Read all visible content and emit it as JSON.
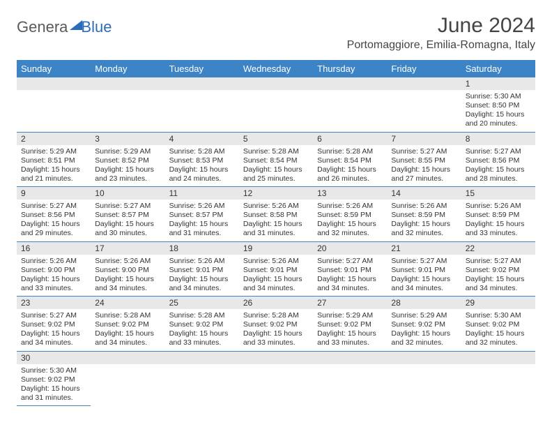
{
  "logo": {
    "part1": "Genera",
    "part2": "Blue"
  },
  "title": "June 2024",
  "location": "Portomaggiore, Emilia-Romagna, Italy",
  "dayHeaders": [
    "Sunday",
    "Monday",
    "Tuesday",
    "Wednesday",
    "Thursday",
    "Friday",
    "Saturday"
  ],
  "colors": {
    "headerBg": "#3d84c6",
    "headerText": "#ffffff",
    "dayNumBg": "#e8e8e8",
    "bodyText": "#333333",
    "accentBlue": "#2a6db8"
  },
  "layout": {
    "startWeekday": 6,
    "daysInMonth": 30
  },
  "days": [
    {
      "n": 1,
      "sr": "5:30 AM",
      "ss": "8:50 PM",
      "dl": "15 hours and 20 minutes."
    },
    {
      "n": 2,
      "sr": "5:29 AM",
      "ss": "8:51 PM",
      "dl": "15 hours and 21 minutes."
    },
    {
      "n": 3,
      "sr": "5:29 AM",
      "ss": "8:52 PM",
      "dl": "15 hours and 23 minutes."
    },
    {
      "n": 4,
      "sr": "5:28 AM",
      "ss": "8:53 PM",
      "dl": "15 hours and 24 minutes."
    },
    {
      "n": 5,
      "sr": "5:28 AM",
      "ss": "8:54 PM",
      "dl": "15 hours and 25 minutes."
    },
    {
      "n": 6,
      "sr": "5:28 AM",
      "ss": "8:54 PM",
      "dl": "15 hours and 26 minutes."
    },
    {
      "n": 7,
      "sr": "5:27 AM",
      "ss": "8:55 PM",
      "dl": "15 hours and 27 minutes."
    },
    {
      "n": 8,
      "sr": "5:27 AM",
      "ss": "8:56 PM",
      "dl": "15 hours and 28 minutes."
    },
    {
      "n": 9,
      "sr": "5:27 AM",
      "ss": "8:56 PM",
      "dl": "15 hours and 29 minutes."
    },
    {
      "n": 10,
      "sr": "5:27 AM",
      "ss": "8:57 PM",
      "dl": "15 hours and 30 minutes."
    },
    {
      "n": 11,
      "sr": "5:26 AM",
      "ss": "8:57 PM",
      "dl": "15 hours and 31 minutes."
    },
    {
      "n": 12,
      "sr": "5:26 AM",
      "ss": "8:58 PM",
      "dl": "15 hours and 31 minutes."
    },
    {
      "n": 13,
      "sr": "5:26 AM",
      "ss": "8:59 PM",
      "dl": "15 hours and 32 minutes."
    },
    {
      "n": 14,
      "sr": "5:26 AM",
      "ss": "8:59 PM",
      "dl": "15 hours and 32 minutes."
    },
    {
      "n": 15,
      "sr": "5:26 AM",
      "ss": "8:59 PM",
      "dl": "15 hours and 33 minutes."
    },
    {
      "n": 16,
      "sr": "5:26 AM",
      "ss": "9:00 PM",
      "dl": "15 hours and 33 minutes."
    },
    {
      "n": 17,
      "sr": "5:26 AM",
      "ss": "9:00 PM",
      "dl": "15 hours and 34 minutes."
    },
    {
      "n": 18,
      "sr": "5:26 AM",
      "ss": "9:01 PM",
      "dl": "15 hours and 34 minutes."
    },
    {
      "n": 19,
      "sr": "5:26 AM",
      "ss": "9:01 PM",
      "dl": "15 hours and 34 minutes."
    },
    {
      "n": 20,
      "sr": "5:27 AM",
      "ss": "9:01 PM",
      "dl": "15 hours and 34 minutes."
    },
    {
      "n": 21,
      "sr": "5:27 AM",
      "ss": "9:01 PM",
      "dl": "15 hours and 34 minutes."
    },
    {
      "n": 22,
      "sr": "5:27 AM",
      "ss": "9:02 PM",
      "dl": "15 hours and 34 minutes."
    },
    {
      "n": 23,
      "sr": "5:27 AM",
      "ss": "9:02 PM",
      "dl": "15 hours and 34 minutes."
    },
    {
      "n": 24,
      "sr": "5:28 AM",
      "ss": "9:02 PM",
      "dl": "15 hours and 34 minutes."
    },
    {
      "n": 25,
      "sr": "5:28 AM",
      "ss": "9:02 PM",
      "dl": "15 hours and 33 minutes."
    },
    {
      "n": 26,
      "sr": "5:28 AM",
      "ss": "9:02 PM",
      "dl": "15 hours and 33 minutes."
    },
    {
      "n": 27,
      "sr": "5:29 AM",
      "ss": "9:02 PM",
      "dl": "15 hours and 33 minutes."
    },
    {
      "n": 28,
      "sr": "5:29 AM",
      "ss": "9:02 PM",
      "dl": "15 hours and 32 minutes."
    },
    {
      "n": 29,
      "sr": "5:30 AM",
      "ss": "9:02 PM",
      "dl": "15 hours and 32 minutes."
    },
    {
      "n": 30,
      "sr": "5:30 AM",
      "ss": "9:02 PM",
      "dl": "15 hours and 31 minutes."
    }
  ],
  "labels": {
    "sunrise": "Sunrise:",
    "sunset": "Sunset:",
    "daylight": "Daylight:"
  }
}
